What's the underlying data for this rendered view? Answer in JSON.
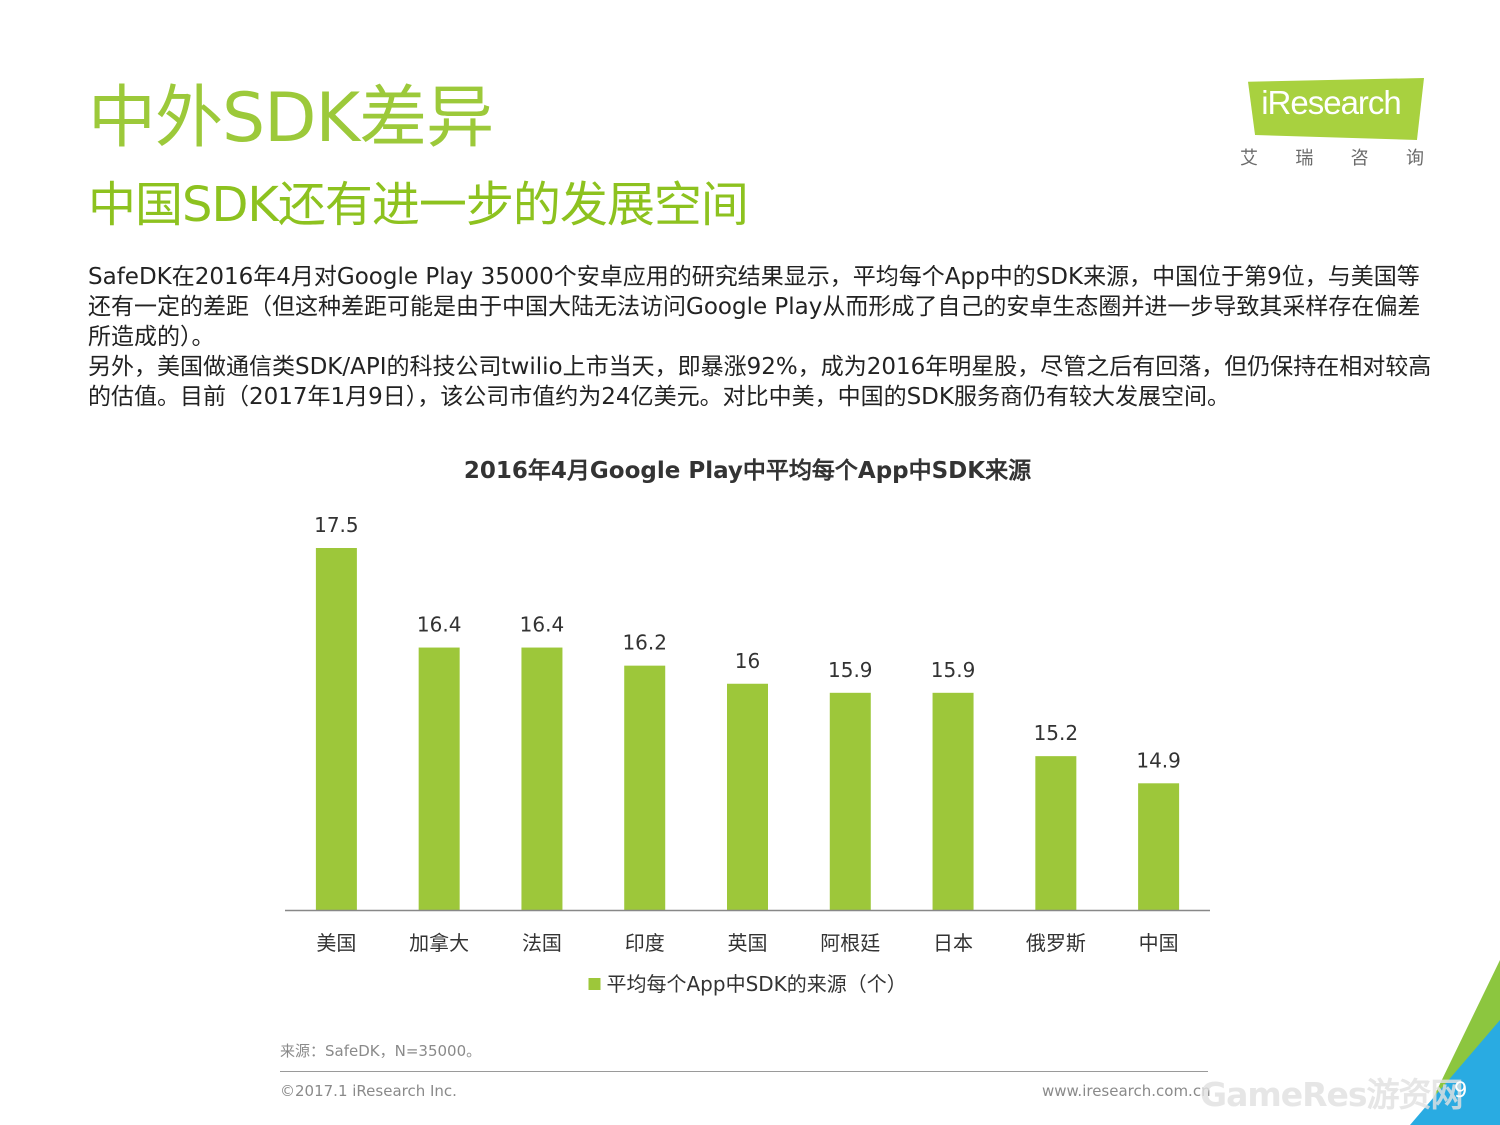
{
  "page": {
    "title": "中外SDK差异",
    "subtitle": "中国SDK还有进一步的发展空间",
    "paragraphs": [
      "SafeDK在2016年4月对Google Play 35000个安卓应用的研究结果显示，平均每个App中的SDK来源，中国位于第9位，与美国等还有一定的差距（但这种差距可能是由于中国大陆无法访问Google Play从而形成了自己的安卓生态圈并进一步导致其采样存在偏差所造成的）。",
      "另外，美国做通信类SDK/API的科技公司twilio上市当天，即暴涨92%，成为2016年明星股，尽管之后有回落，但仍保持在相对较高的估值。目前（2017年1月9日），该公司市值约为24亿美元。对比中美，中国的SDK服务商仍有较大发展空间。"
    ]
  },
  "logo": {
    "name": "iResearch",
    "chars": [
      "艾",
      "瑞",
      "咨",
      "询"
    ],
    "color": "#a8d13f"
  },
  "chart_data": {
    "type": "bar",
    "title": "2016年4月Google Play中平均每个App中SDK来源",
    "categories": [
      "美国",
      "加拿大",
      "法国",
      "印度",
      "英国",
      "阿根廷",
      "日本",
      "俄罗斯",
      "中国"
    ],
    "series": [
      {
        "name": "平均每个App中SDK的来源（个）",
        "values": [
          17.5,
          16.4,
          16.4,
          16.2,
          16,
          15.9,
          15.9,
          15.2,
          14.9
        ],
        "color": "#9dc73a"
      }
    ],
    "xlabel": "",
    "ylabel": "",
    "ylim": [
      13.5,
      17.5
    ],
    "grid": false,
    "legend_position": "bottom",
    "data_labels": true
  },
  "footer": {
    "source": "来源：SafeDK，N=35000。",
    "copyright": "©2017.1 iResearch Inc.",
    "website": "www.iresearch.com.cn",
    "page_number": "9",
    "watermark": "GameRes游资网"
  },
  "colors": {
    "accent": "#8dc21f",
    "corner_green": "#8cc63f",
    "corner_blue": "#29abe2"
  }
}
